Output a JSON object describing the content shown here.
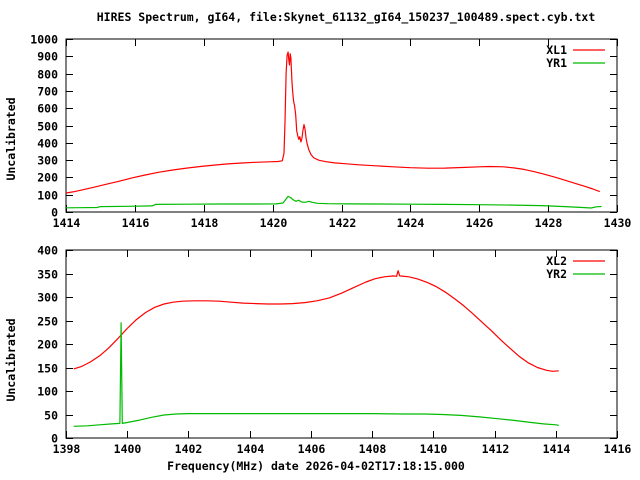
{
  "title": "HIRES Spectrum, gI64, file:Skynet_61132_gI64_150237_100489.spect.cyb.txt",
  "xlabel": "Frequency(MHz) date 2026-04-02T17:18:15.000",
  "colors": {
    "background": "#ffffff",
    "axis": "#000000",
    "text": "#000000",
    "series_red": "#ff0000",
    "series_green": "#00bb00"
  },
  "chart_data": [
    {
      "type": "line",
      "name": "top-spectrum",
      "ylabel": "Uncalibrated",
      "xlim": [
        1414,
        1430
      ],
      "ylim": [
        0,
        1000
      ],
      "x_ticks": [
        "1414",
        "1416",
        "1418",
        "1420",
        "1422",
        "1424",
        "1426",
        "1428",
        "1430"
      ],
      "x_tick_values": [
        1414,
        1416,
        1418,
        1420,
        1422,
        1424,
        1426,
        1428,
        1430
      ],
      "y_ticks": [
        "0",
        "100",
        "200",
        "300",
        "400",
        "500",
        "600",
        "700",
        "800",
        "900",
        "1000"
      ],
      "y_tick_values": [
        0,
        100,
        200,
        300,
        400,
        500,
        600,
        700,
        800,
        900,
        1000
      ],
      "grid": false,
      "legend_position": "top-right",
      "series": [
        {
          "name": "XL1",
          "color": "#ff0000",
          "points": [
            [
              1414.0,
              110
            ],
            [
              1414.2,
              116
            ],
            [
              1414.5,
              129
            ],
            [
              1414.8,
              143
            ],
            [
              1415.1,
              157
            ],
            [
              1415.5,
              176
            ],
            [
              1415.9,
              196
            ],
            [
              1416.3,
              214
            ],
            [
              1416.7,
              230
            ],
            [
              1417.1,
              243
            ],
            [
              1417.5,
              254
            ],
            [
              1417.9,
              263
            ],
            [
              1418.3,
              271
            ],
            [
              1418.7,
              278
            ],
            [
              1419.1,
              283
            ],
            [
              1419.5,
              287
            ],
            [
              1419.9,
              290
            ],
            [
              1420.15,
              292
            ],
            [
              1420.28,
              296
            ],
            [
              1420.33,
              340
            ],
            [
              1420.36,
              520
            ],
            [
              1420.39,
              800
            ],
            [
              1420.42,
              905
            ],
            [
              1420.45,
              925
            ],
            [
              1420.47,
              880
            ],
            [
              1420.49,
              850
            ],
            [
              1420.51,
              915
            ],
            [
              1420.53,
              890
            ],
            [
              1420.56,
              760
            ],
            [
              1420.58,
              700
            ],
            [
              1420.61,
              640
            ],
            [
              1420.64,
              610
            ],
            [
              1420.67,
              560
            ],
            [
              1420.7,
              470
            ],
            [
              1420.73,
              440
            ],
            [
              1420.76,
              420
            ],
            [
              1420.79,
              435
            ],
            [
              1420.82,
              405
            ],
            [
              1420.85,
              425
            ],
            [
              1420.88,
              470
            ],
            [
              1420.91,
              505
            ],
            [
              1420.94,
              480
            ],
            [
              1420.97,
              430
            ],
            [
              1421.0,
              395
            ],
            [
              1421.05,
              360
            ],
            [
              1421.12,
              330
            ],
            [
              1421.2,
              312
            ],
            [
              1421.35,
              299
            ],
            [
              1421.55,
              291
            ],
            [
              1421.8,
              284
            ],
            [
              1422.1,
              279
            ],
            [
              1422.5,
              273
            ],
            [
              1423.0,
              267
            ],
            [
              1423.5,
              261
            ],
            [
              1424.0,
              256
            ],
            [
              1424.5,
              253
            ],
            [
              1425.0,
              254
            ],
            [
              1425.5,
              257
            ],
            [
              1426.0,
              261
            ],
            [
              1426.3,
              263
            ],
            [
              1426.7,
              261
            ],
            [
              1427.0,
              255
            ],
            [
              1427.3,
              246
            ],
            [
              1427.6,
              233
            ],
            [
              1427.9,
              218
            ],
            [
              1428.2,
              201
            ],
            [
              1428.5,
              183
            ],
            [
              1428.8,
              164
            ],
            [
              1429.1,
              146
            ],
            [
              1429.3,
              133
            ],
            [
              1429.5,
              118
            ]
          ]
        },
        {
          "name": "YR1",
          "color": "#00bb00",
          "points": [
            [
              1414.0,
              24
            ],
            [
              1414.4,
              25
            ],
            [
              1414.9,
              26
            ],
            [
              1415.0,
              31
            ],
            [
              1415.8,
              33
            ],
            [
              1416.5,
              35
            ],
            [
              1416.6,
              44
            ],
            [
              1417.5,
              45
            ],
            [
              1418.5,
              46
            ],
            [
              1419.5,
              46
            ],
            [
              1420.1,
              47
            ],
            [
              1420.3,
              52
            ],
            [
              1420.38,
              72
            ],
            [
              1420.45,
              90
            ],
            [
              1420.52,
              84
            ],
            [
              1420.6,
              70
            ],
            [
              1420.68,
              62
            ],
            [
              1420.76,
              68
            ],
            [
              1420.84,
              58
            ],
            [
              1420.95,
              56
            ],
            [
              1421.05,
              62
            ],
            [
              1421.15,
              56
            ],
            [
              1421.3,
              50
            ],
            [
              1421.6,
              48
            ],
            [
              1422.2,
              47
            ],
            [
              1423.0,
              46
            ],
            [
              1424.0,
              45
            ],
            [
              1425.0,
              44
            ],
            [
              1426.0,
              42
            ],
            [
              1427.0,
              40
            ],
            [
              1427.8,
              37
            ],
            [
              1428.5,
              31
            ],
            [
              1429.0,
              26
            ],
            [
              1429.25,
              23
            ],
            [
              1429.4,
              30
            ],
            [
              1429.55,
              32
            ]
          ]
        }
      ]
    },
    {
      "type": "line",
      "name": "bottom-spectrum",
      "ylabel": "Uncalibrated",
      "xlim": [
        1398,
        1416
      ],
      "ylim": [
        0,
        400
      ],
      "x_ticks": [
        "1398",
        "1400",
        "1402",
        "1404",
        "1406",
        "1408",
        "1410",
        "1412",
        "1414",
        "1416"
      ],
      "x_tick_values": [
        1398,
        1400,
        1402,
        1404,
        1406,
        1408,
        1410,
        1412,
        1414,
        1416
      ],
      "y_ticks": [
        "0",
        "50",
        "100",
        "150",
        "200",
        "250",
        "300",
        "350",
        "400"
      ],
      "y_tick_values": [
        0,
        50,
        100,
        150,
        200,
        250,
        300,
        350,
        400
      ],
      "grid": false,
      "legend_position": "top-right",
      "series": [
        {
          "name": "XL2",
          "color": "#ff0000",
          "points": [
            [
              1398.25,
              147
            ],
            [
              1398.5,
              152
            ],
            [
              1398.8,
              162
            ],
            [
              1399.1,
              175
            ],
            [
              1399.4,
              192
            ],
            [
              1399.7,
              212
            ],
            [
              1400.0,
              233
            ],
            [
              1400.3,
              252
            ],
            [
              1400.6,
              267
            ],
            [
              1400.9,
              278
            ],
            [
              1401.2,
              285
            ],
            [
              1401.5,
              289
            ],
            [
              1401.8,
              291
            ],
            [
              1402.2,
              292
            ],
            [
              1402.6,
              292
            ],
            [
              1403.0,
              291
            ],
            [
              1403.4,
              289
            ],
            [
              1403.8,
              287
            ],
            [
              1404.2,
              286
            ],
            [
              1404.6,
              285
            ],
            [
              1405.0,
              285
            ],
            [
              1405.4,
              286
            ],
            [
              1405.8,
              288
            ],
            [
              1406.2,
              292
            ],
            [
              1406.6,
              298
            ],
            [
              1407.0,
              308
            ],
            [
              1407.4,
              320
            ],
            [
              1407.8,
              332
            ],
            [
              1408.1,
              339
            ],
            [
              1408.4,
              343
            ],
            [
              1408.7,
              345
            ],
            [
              1408.8,
              344
            ],
            [
              1408.85,
              356
            ],
            [
              1408.9,
              345
            ],
            [
              1409.2,
              343
            ],
            [
              1409.5,
              338
            ],
            [
              1409.8,
              331
            ],
            [
              1410.1,
              322
            ],
            [
              1410.4,
              310
            ],
            [
              1410.7,
              296
            ],
            [
              1411.0,
              281
            ],
            [
              1411.3,
              264
            ],
            [
              1411.6,
              246
            ],
            [
              1411.9,
              228
            ],
            [
              1412.2,
              209
            ],
            [
              1412.5,
              191
            ],
            [
              1412.8,
              174
            ],
            [
              1413.1,
              160
            ],
            [
              1413.4,
              150
            ],
            [
              1413.7,
              144
            ],
            [
              1413.9,
              142
            ],
            [
              1414.1,
              143
            ]
          ]
        },
        {
          "name": "YR2",
          "color": "#00bb00",
          "points": [
            [
              1398.25,
              25
            ],
            [
              1398.7,
              26
            ],
            [
              1399.1,
              28
            ],
            [
              1399.5,
              30
            ],
            [
              1399.76,
              31
            ],
            [
              1399.8,
              245
            ],
            [
              1399.84,
              31
            ],
            [
              1400.0,
              33
            ],
            [
              1400.4,
              38
            ],
            [
              1400.8,
              44
            ],
            [
              1401.2,
              49
            ],
            [
              1401.6,
              51
            ],
            [
              1402.0,
              52
            ],
            [
              1403.0,
              52
            ],
            [
              1404.0,
              52
            ],
            [
              1405.0,
              52
            ],
            [
              1406.0,
              52
            ],
            [
              1407.0,
              52
            ],
            [
              1408.0,
              52
            ],
            [
              1409.0,
              51
            ],
            [
              1409.7,
              51
            ],
            [
              1410.3,
              50
            ],
            [
              1410.9,
              48
            ],
            [
              1411.5,
              45
            ],
            [
              1412.1,
              41
            ],
            [
              1412.7,
              37
            ],
            [
              1413.2,
              33
            ],
            [
              1413.6,
              30
            ],
            [
              1414.0,
              28
            ],
            [
              1414.1,
              27
            ]
          ]
        }
      ]
    }
  ]
}
